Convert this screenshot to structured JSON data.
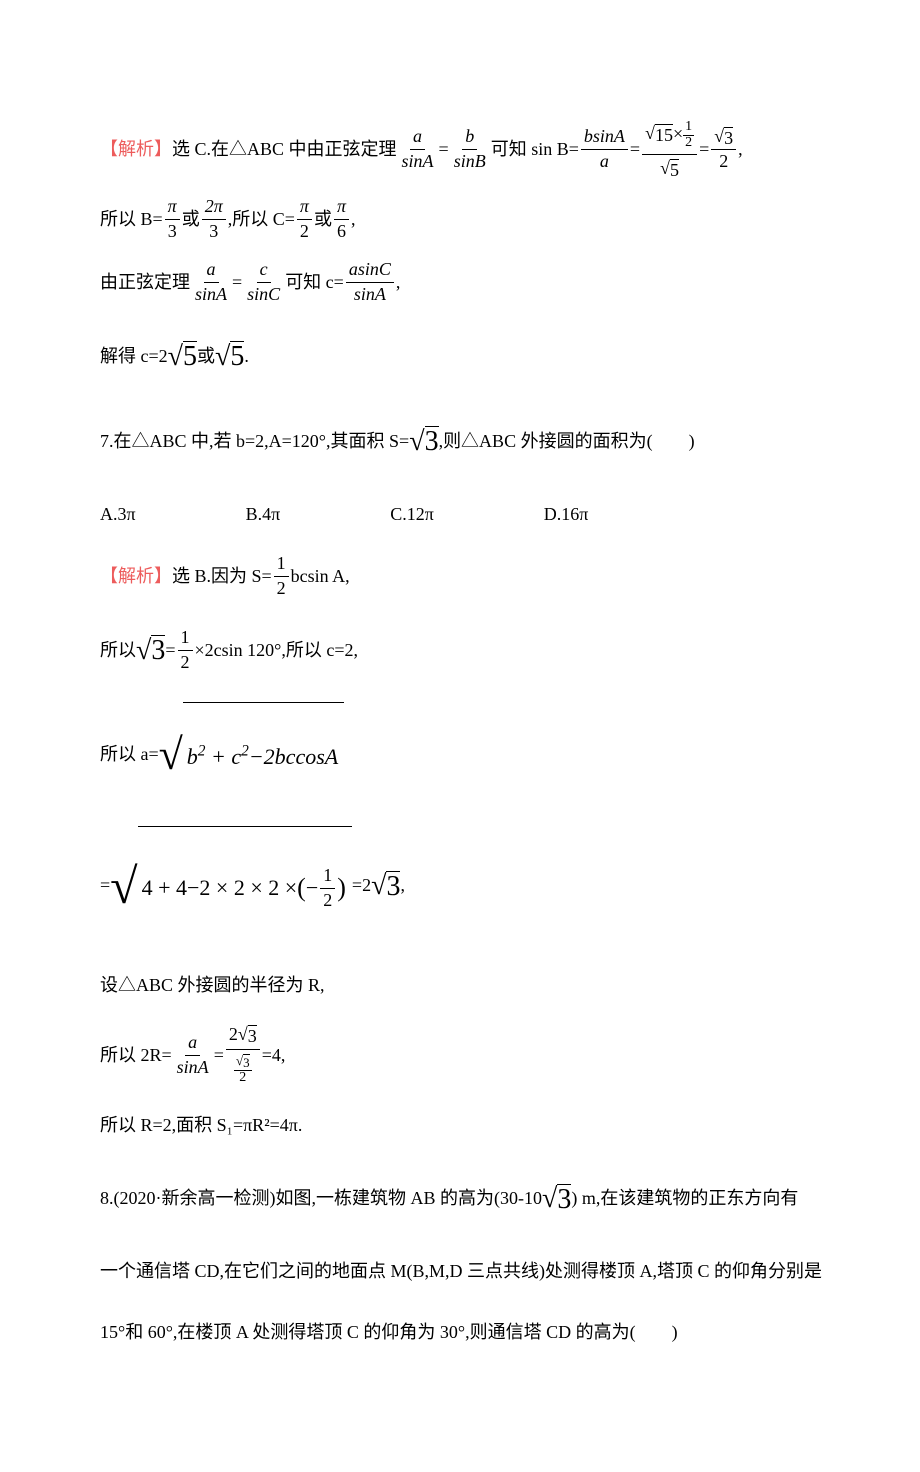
{
  "colors": {
    "highlight": "#ed5c5c",
    "text": "#000000",
    "background": "#ffffff"
  },
  "typography": {
    "body_fontsize_pt": 14,
    "line_height": 2.4,
    "font_family": "SimSun"
  },
  "p1": {
    "hl": "【解析】",
    "t1": "选 C.在△ABC 中由正弦定理",
    "f1n": "a",
    "f1d": "sinA",
    "eq": "=",
    "f2n": "b",
    "f2d": "sinB",
    "t2": "可知 sin B=",
    "f3n": "bsinA",
    "f3d": "a",
    "t3": "=",
    "f4nA": "15",
    "f4nB": "1",
    "f4nC": "2",
    "f4d": "5",
    "t4": "=",
    "f5n": "3",
    "f5d": "2",
    "tail": ","
  },
  "p2": {
    "t1": "所以 B=",
    "f1n": "π",
    "f1d": "3",
    "or": "或",
    "f2n": "2π",
    "f2d": "3",
    "t2": ",所以 C=",
    "f3n": "π",
    "f3d": "2",
    "f4n": "π",
    "f4d": "6",
    "tail": ","
  },
  "p3": {
    "t1": "由正弦定理",
    "f1n": "a",
    "f1d": "sinA",
    "eq": "=",
    "f2n": "c",
    "f2d": "sinC",
    "t2": "可知 c=",
    "f3n": "asinC",
    "f3d": "sinA",
    "tail": ","
  },
  "p4": {
    "t1": "解得 c=2",
    "r1": "5",
    "or": "或",
    "r2": "5",
    "dot": "."
  },
  "q7": {
    "line1": "7.在△ABC 中,若 b=2,A=120°,其面积 S=",
    "sqrt": "3",
    "line1b": ",则△ABC 外接圆的面积为(　　)",
    "A": "A.3π",
    "B": "B.4π",
    "C": "C.12π",
    "D": "D.16π",
    "sol_hl": "【解析】",
    "sol_t1": "选 B.因为 S=",
    "f1n": "1",
    "f1d": "2",
    "sol_t2": "bcsin A,",
    "line3a": "所以",
    "r3": "3",
    "line3b": "=",
    "fAn": "1",
    "fAd": "2",
    "line3c": "×2csin 120°,所以 c=2,",
    "line4a": "所以 a=",
    "rad1": "b² + c²−2bccosA",
    "line5a": "=",
    "rad2a": "4 + 4−2 × 2 × 2 × ",
    "rad2b_n": "1",
    "rad2b_d": "2",
    "line5b": "=2",
    "r5": "3",
    "line5c": ",",
    "line6": "设△ABC 外接圆的半径为 R,",
    "line7a": "所以 2R=",
    "fRn": "a",
    "fRd": "sinA",
    "eq": "=",
    "fSnA": "2",
    "fSnB": "3",
    "fSd_n": "3",
    "fSd_d": "2",
    "line7b": "=4,",
    "line8": "所以 R=2,面积 S₁=πR²=4π."
  },
  "q8": {
    "line1a": "8.(2020·新余高一检测)如图,一栋建筑物 AB 的高为(30-10",
    "sqrt": "3",
    "line1b": ") m,在该建筑物的正东方向有",
    "line2": "一个通信塔 CD,在它们之间的地面点 M(B,M,D 三点共线)处测得楼顶 A,塔顶 C 的仰角分别是",
    "line3": "15°和 60°,在楼顶 A 处测得塔顶 C 的仰角为 30°,则通信塔 CD 的高为(　　)"
  }
}
